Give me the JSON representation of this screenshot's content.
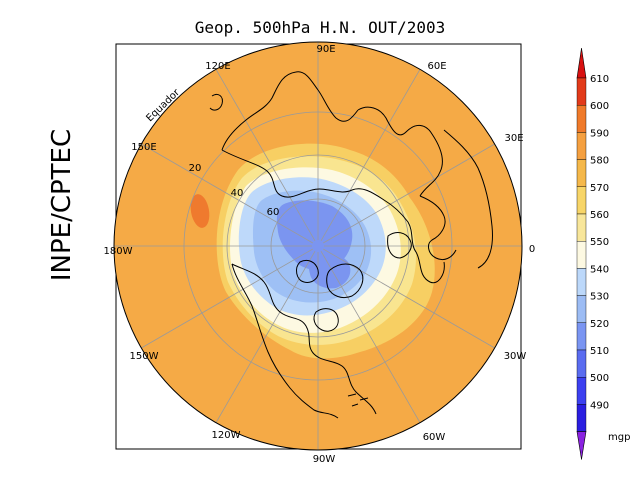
{
  "title": "Geop. 500hPa H.N. OUT/2003",
  "side_label": "INPE/CPTEC",
  "equator_label": "Equador",
  "longitude_labels": [
    "90E",
    "60E",
    "30E",
    "0",
    "30W",
    "60W",
    "90W",
    "120W",
    "150W",
    "180W",
    "150E",
    "120E"
  ],
  "latitude_labels": [
    "20",
    "40",
    "60"
  ],
  "colorbar": {
    "unit": "mgp",
    "levels": [
      "490",
      "500",
      "510",
      "520",
      "530",
      "540",
      "550",
      "560",
      "570",
      "580",
      "590",
      "600",
      "610"
    ],
    "colors": [
      "#2a1ee0",
      "#3c40f0",
      "#5a6cf0",
      "#7a95f2",
      "#9cbcf4",
      "#bcd8fa",
      "#fdf9e2",
      "#f8e69a",
      "#f7d568",
      "#f5b84a",
      "#f5a040",
      "#f07a2a",
      "#e23a1a"
    ],
    "min_arrow_color": "#8a22e0",
    "max_arrow_color": "#d81010"
  },
  "map_colors": {
    "outer": "#f5aa46",
    "ring_570": "#f7cf63",
    "ring_560": "#f9e590",
    "ring_550": "#fdf9e2",
    "ring_540": "#bed9fa",
    "ring_530": "#9ec0f5",
    "ring_520": "#7b95f0",
    "high_spot": "#ef7a2e"
  }
}
